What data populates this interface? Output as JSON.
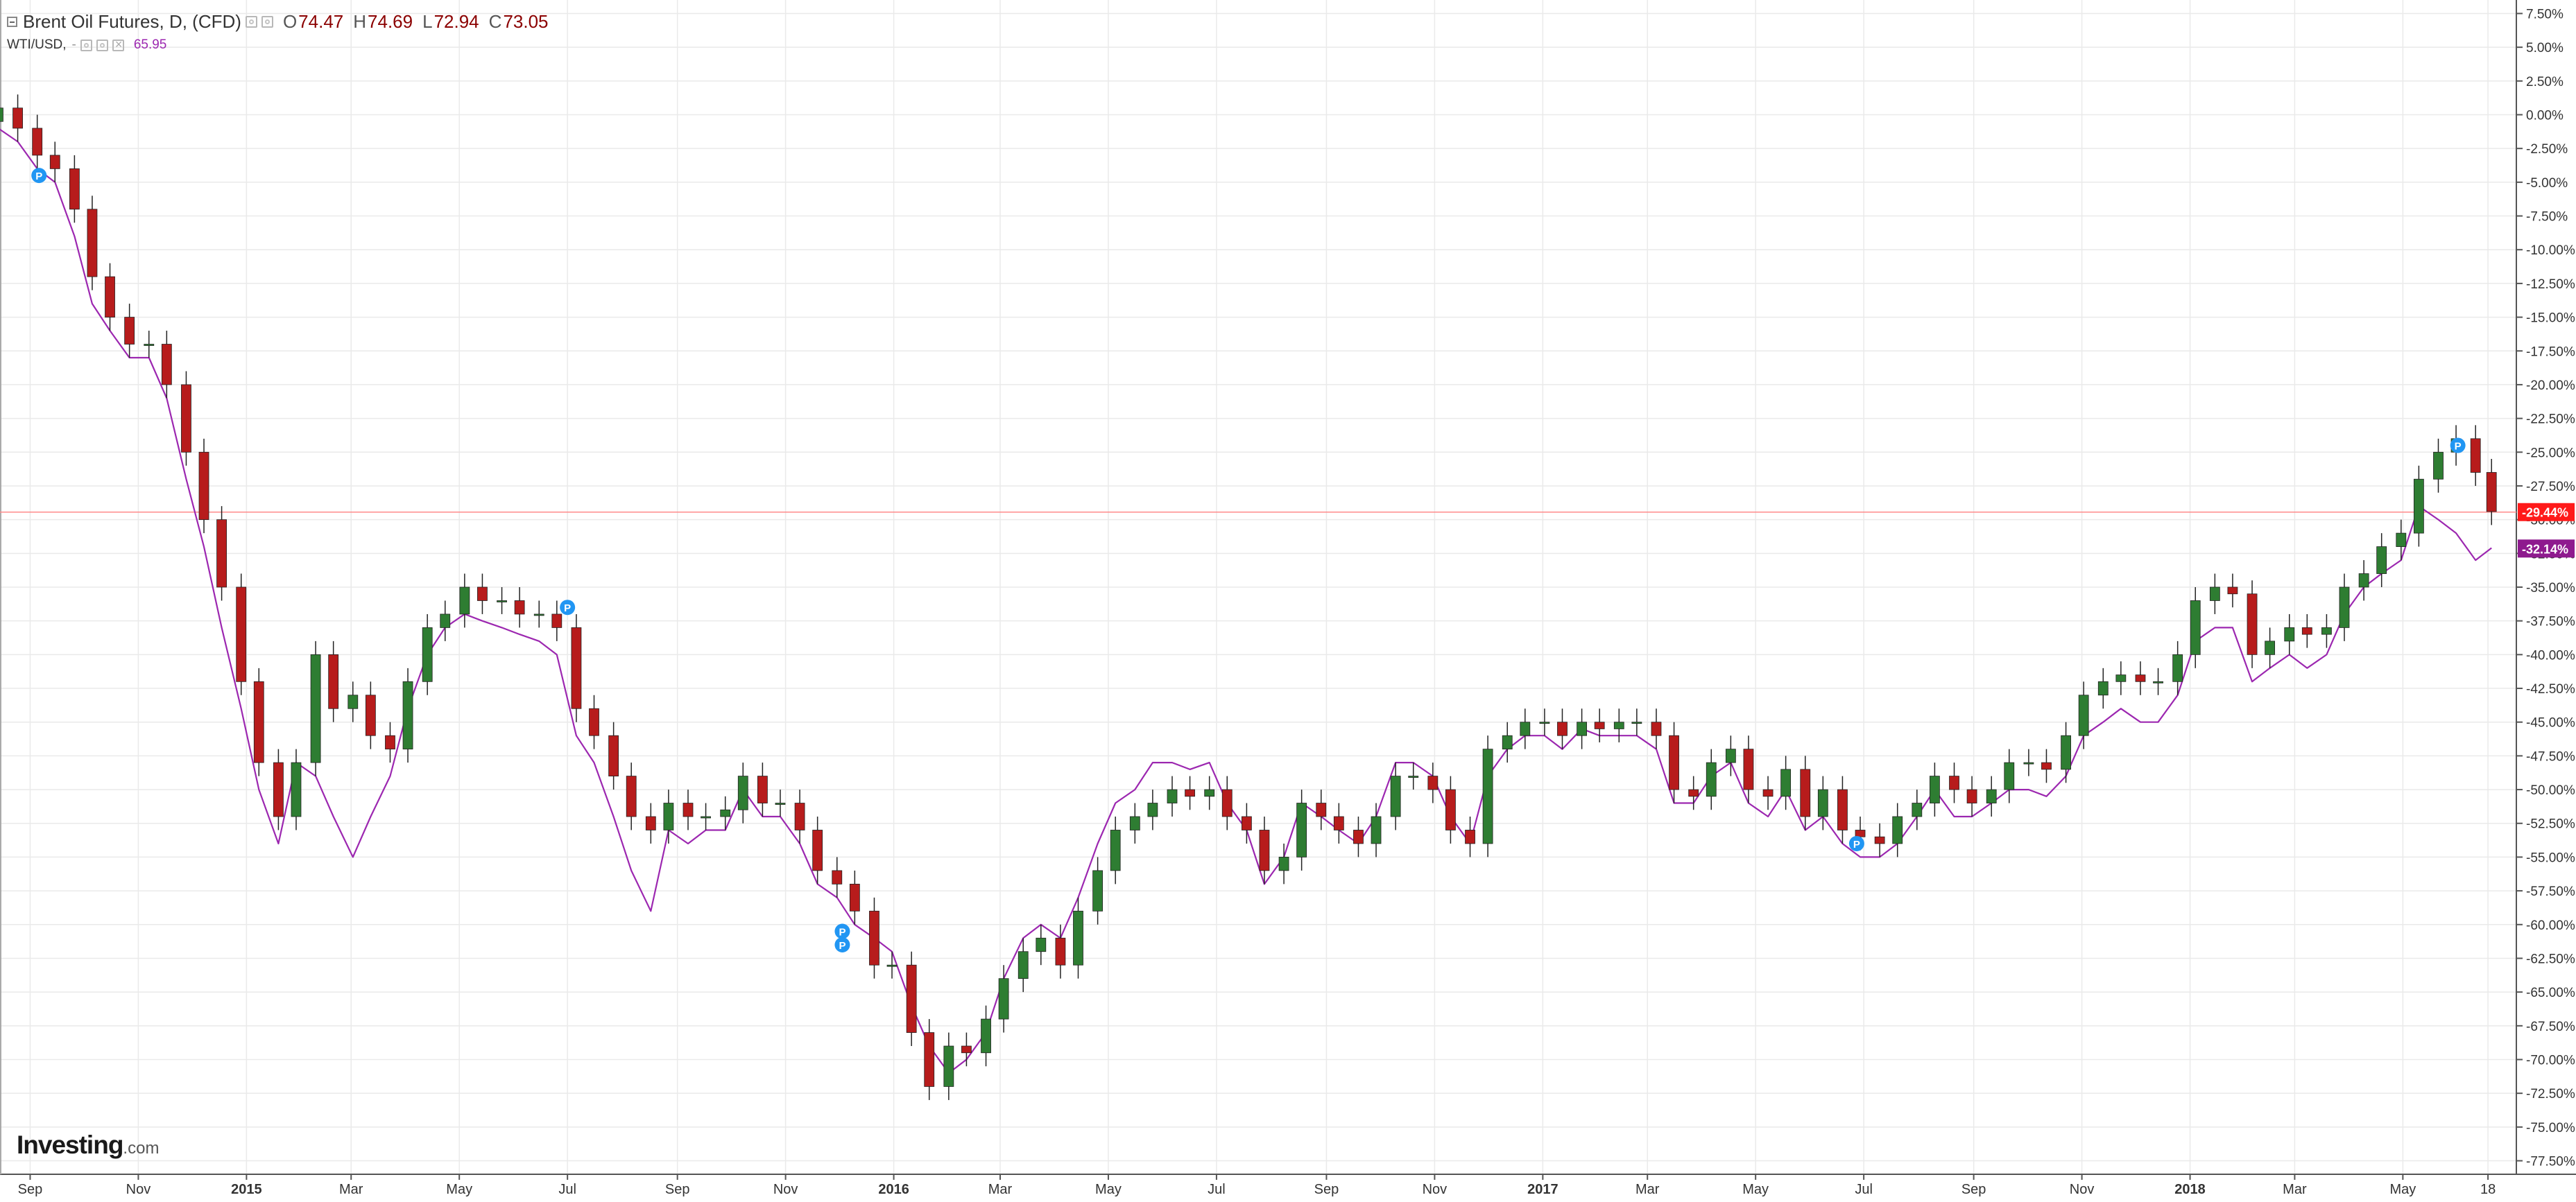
{
  "header": {
    "symbol": "Brent Oil Futures, D, (CFD)",
    "open_label": "O",
    "open": "74.47",
    "high_label": "H",
    "high": "74.69",
    "low_label": "L",
    "low": "72.94",
    "close_label": "C",
    "close": "73.05",
    "compare_symbol": "WTI/USD,",
    "compare_dash": "-",
    "compare_value": "65.95"
  },
  "logo": {
    "main": "Investing",
    "sub": ".com"
  },
  "colors": {
    "up": "#2e7d32",
    "down": "#b71c1c",
    "wti_line": "#9c27b0",
    "brent_badge": "#ff1a1a",
    "wti_badge": "#8e1a8e",
    "marker": "#2196f3",
    "grid": "#eaeaea",
    "axis_text": "#333333"
  },
  "icons": [
    "collapse-icon",
    "settings-icon",
    "visibility-icon",
    "close-icon",
    "p-marker-icon"
  ],
  "chart_data": {
    "type": "line",
    "x_type": "date",
    "x_tick_labels": [
      {
        "date": "2014-09-01",
        "label": "Sep"
      },
      {
        "date": "2014-11-01",
        "label": "Nov"
      },
      {
        "date": "2015-01-01",
        "label": "2015",
        "bold": true
      },
      {
        "date": "2015-03-01",
        "label": "Mar"
      },
      {
        "date": "2015-05-01",
        "label": "May"
      },
      {
        "date": "2015-07-01",
        "label": "Jul"
      },
      {
        "date": "2015-09-01",
        "label": "Sep"
      },
      {
        "date": "2015-11-01",
        "label": "Nov"
      },
      {
        "date": "2016-01-01",
        "label": "2016",
        "bold": true
      },
      {
        "date": "2016-03-01",
        "label": "Mar"
      },
      {
        "date": "2016-05-01",
        "label": "May"
      },
      {
        "date": "2016-07-01",
        "label": "Jul"
      },
      {
        "date": "2016-09-01",
        "label": "Sep"
      },
      {
        "date": "2016-11-01",
        "label": "Nov"
      },
      {
        "date": "2017-01-01",
        "label": "2017",
        "bold": true
      },
      {
        "date": "2017-03-01",
        "label": "Mar"
      },
      {
        "date": "2017-05-01",
        "label": "May"
      },
      {
        "date": "2017-07-01",
        "label": "Jul"
      },
      {
        "date": "2017-09-01",
        "label": "Sep"
      },
      {
        "date": "2017-11-01",
        "label": "Nov"
      },
      {
        "date": "2018-01-01",
        "label": "2018",
        "bold": true
      },
      {
        "date": "2018-03-01",
        "label": "Mar"
      },
      {
        "date": "2018-05-01",
        "label": "May"
      },
      {
        "date": "2018-06-18",
        "label": "18"
      }
    ],
    "y_ticks": [
      "7.50%",
      "5.00%",
      "2.50%",
      "0.00%",
      "-2.50%",
      "-5.00%",
      "-7.50%",
      "-10.00%",
      "-12.50%",
      "-15.00%",
      "-17.50%",
      "-20.00%",
      "-22.50%",
      "-25.00%",
      "-27.50%",
      "-30.00%",
      "-32.50%",
      "-35.00%",
      "-37.50%",
      "-40.00%",
      "-42.50%",
      "-45.00%",
      "-47.50%",
      "-50.00%",
      "-52.50%",
      "-55.00%",
      "-57.50%",
      "-60.00%",
      "-62.50%",
      "-65.00%",
      "-67.50%",
      "-70.00%",
      "-72.50%",
      "-75.00%",
      "-77.50%"
    ],
    "y_range_pct": [
      -78.5,
      8.5
    ],
    "x_range": [
      "2014-08-15",
      "2018-07-04"
    ],
    "grid": true,
    "series": [
      {
        "name": "Brent Oil Futures",
        "style": "candlestick",
        "last_pct": -29.44,
        "last_label": "-29.44%",
        "x": [
          "2014-08-14",
          "2014-08-25",
          "2014-09-05",
          "2014-09-15",
          "2014-09-26",
          "2014-10-06",
          "2014-10-16",
          "2014-10-27",
          "2014-11-07",
          "2014-11-17",
          "2014-11-28",
          "2014-12-08",
          "2014-12-18",
          "2014-12-29",
          "2015-01-08",
          "2015-01-19",
          "2015-01-29",
          "2015-02-09",
          "2015-02-19",
          "2015-03-02",
          "2015-03-12",
          "2015-03-23",
          "2015-04-02",
          "2015-04-13",
          "2015-04-23",
          "2015-05-04",
          "2015-05-14",
          "2015-05-25",
          "2015-06-04",
          "2015-06-15",
          "2015-06-25",
          "2015-07-06",
          "2015-07-16",
          "2015-07-27",
          "2015-08-06",
          "2015-08-17",
          "2015-08-27",
          "2015-09-07",
          "2015-09-17",
          "2015-09-28",
          "2015-10-08",
          "2015-10-19",
          "2015-10-29",
          "2015-11-09",
          "2015-11-19",
          "2015-11-30",
          "2015-12-10",
          "2015-12-21",
          "2015-12-31",
          "2016-01-11",
          "2016-01-21",
          "2016-02-01",
          "2016-02-11",
          "2016-02-22",
          "2016-03-03",
          "2016-03-14",
          "2016-03-24",
          "2016-04-04",
          "2016-04-14",
          "2016-04-25",
          "2016-05-05",
          "2016-05-16",
          "2016-05-26",
          "2016-06-06",
          "2016-06-16",
          "2016-06-27",
          "2016-07-07",
          "2016-07-18",
          "2016-07-28",
          "2016-08-08",
          "2016-08-18",
          "2016-08-29",
          "2016-09-08",
          "2016-09-19",
          "2016-09-29",
          "2016-10-10",
          "2016-10-20",
          "2016-10-31",
          "2016-11-10",
          "2016-11-21",
          "2016-12-01",
          "2016-12-12",
          "2016-12-22",
          "2017-01-02",
          "2017-01-12",
          "2017-01-23",
          "2017-02-02",
          "2017-02-13",
          "2017-02-23",
          "2017-03-06",
          "2017-03-16",
          "2017-03-27",
          "2017-04-06",
          "2017-04-17",
          "2017-04-27",
          "2017-05-08",
          "2017-05-18",
          "2017-05-29",
          "2017-06-08",
          "2017-06-19",
          "2017-06-29",
          "2017-07-10",
          "2017-07-20",
          "2017-07-31",
          "2017-08-10",
          "2017-08-21",
          "2017-08-31",
          "2017-09-11",
          "2017-09-21",
          "2017-10-02",
          "2017-10-12",
          "2017-10-23",
          "2017-11-02",
          "2017-11-13",
          "2017-11-23",
          "2017-12-04",
          "2017-12-14",
          "2017-12-25",
          "2018-01-04",
          "2018-01-15",
          "2018-01-25",
          "2018-02-05",
          "2018-02-15",
          "2018-02-26",
          "2018-03-08",
          "2018-03-19",
          "2018-03-29",
          "2018-04-09",
          "2018-04-19",
          "2018-04-30",
          "2018-05-10",
          "2018-05-21",
          "2018-05-31",
          "2018-06-11",
          "2018-06-20"
        ],
        "close_pct": [
          0.5,
          -1.0,
          -3.0,
          -4.0,
          -7.0,
          -12.0,
          -15.0,
          -17.0,
          -17.0,
          -20.0,
          -25.0,
          -30.0,
          -35.0,
          -42.0,
          -48.0,
          -52.0,
          -48.0,
          -40.0,
          -44.0,
          -43.0,
          -46.0,
          -47.0,
          -42.0,
          -38.0,
          -37.0,
          -35.0,
          -36.0,
          -36.0,
          -37.0,
          -37.0,
          -38.0,
          -44.0,
          -46.0,
          -49.0,
          -52.0,
          -53.0,
          -51.0,
          -52.0,
          -52.0,
          -51.5,
          -49.0,
          -51.0,
          -51.0,
          -53.0,
          -56.0,
          -57.0,
          -59.0,
          -63.0,
          -63.0,
          -68.0,
          -72.0,
          -69.0,
          -69.5,
          -67.0,
          -64.0,
          -62.0,
          -61.0,
          -63.0,
          -59.0,
          -56.0,
          -53.0,
          -52.0,
          -51.0,
          -50.0,
          -50.5,
          -50.0,
          -52.0,
          -53.0,
          -56.0,
          -55.0,
          -51.0,
          -52.0,
          -53.0,
          -54.0,
          -52.0,
          -49.0,
          -49.0,
          -50.0,
          -53.0,
          -54.0,
          -47.0,
          -46.0,
          -45.0,
          -45.0,
          -46.0,
          -45.0,
          -45.5,
          -45.0,
          -45.0,
          -46.0,
          -50.0,
          -50.5,
          -48.0,
          -47.0,
          -50.0,
          -50.5,
          -48.5,
          -52.0,
          -50.0,
          -53.0,
          -53.5,
          -54.0,
          -52.0,
          -51.0,
          -49.0,
          -50.0,
          -51.0,
          -50.0,
          -48.0,
          -48.0,
          -48.5,
          -46.0,
          -43.0,
          -42.0,
          -41.5,
          -42.0,
          -42.0,
          -40.0,
          -36.0,
          -35.0,
          -35.5,
          -40.0,
          -39.0,
          -38.0,
          -38.5,
          -38.0,
          -35.0,
          -34.0,
          -32.0,
          -31.0,
          -27.0,
          -25.0,
          -24.0,
          -26.5,
          -29.4
        ]
      },
      {
        "name": "WTI/USD",
        "style": "line",
        "last_pct": -32.14,
        "last_label": "-32.14%",
        "x": [
          "2014-08-14",
          "2014-08-25",
          "2014-09-05",
          "2014-09-15",
          "2014-09-26",
          "2014-10-06",
          "2014-10-16",
          "2014-10-27",
          "2014-11-07",
          "2014-11-17",
          "2014-11-28",
          "2014-12-08",
          "2014-12-18",
          "2014-12-29",
          "2015-01-08",
          "2015-01-19",
          "2015-01-29",
          "2015-02-09",
          "2015-02-19",
          "2015-03-02",
          "2015-03-12",
          "2015-03-23",
          "2015-04-02",
          "2015-04-13",
          "2015-04-23",
          "2015-05-04",
          "2015-05-14",
          "2015-05-25",
          "2015-06-04",
          "2015-06-15",
          "2015-06-25",
          "2015-07-06",
          "2015-07-16",
          "2015-07-27",
          "2015-08-06",
          "2015-08-17",
          "2015-08-27",
          "2015-09-07",
          "2015-09-17",
          "2015-09-28",
          "2015-10-08",
          "2015-10-19",
          "2015-10-29",
          "2015-11-09",
          "2015-11-19",
          "2015-11-30",
          "2015-12-10",
          "2015-12-21",
          "2015-12-31",
          "2016-01-11",
          "2016-01-21",
          "2016-02-01",
          "2016-02-11",
          "2016-02-22",
          "2016-03-03",
          "2016-03-14",
          "2016-03-24",
          "2016-04-04",
          "2016-04-14",
          "2016-04-25",
          "2016-05-05",
          "2016-05-16",
          "2016-05-26",
          "2016-06-06",
          "2016-06-16",
          "2016-06-27",
          "2016-07-07",
          "2016-07-18",
          "2016-07-28",
          "2016-08-08",
          "2016-08-18",
          "2016-08-29",
          "2016-09-08",
          "2016-09-19",
          "2016-09-29",
          "2016-10-10",
          "2016-10-20",
          "2016-10-31",
          "2016-11-10",
          "2016-11-21",
          "2016-12-01",
          "2016-12-12",
          "2016-12-22",
          "2017-01-02",
          "2017-01-12",
          "2017-01-23",
          "2017-02-02",
          "2017-02-13",
          "2017-02-23",
          "2017-03-06",
          "2017-03-16",
          "2017-03-27",
          "2017-04-06",
          "2017-04-17",
          "2017-04-27",
          "2017-05-08",
          "2017-05-18",
          "2017-05-29",
          "2017-06-08",
          "2017-06-19",
          "2017-06-29",
          "2017-07-10",
          "2017-07-20",
          "2017-07-31",
          "2017-08-10",
          "2017-08-21",
          "2017-08-31",
          "2017-09-11",
          "2017-09-21",
          "2017-10-02",
          "2017-10-12",
          "2017-10-23",
          "2017-11-02",
          "2017-11-13",
          "2017-11-23",
          "2017-12-04",
          "2017-12-14",
          "2017-12-25",
          "2018-01-04",
          "2018-01-15",
          "2018-01-25",
          "2018-02-05",
          "2018-02-15",
          "2018-02-26",
          "2018-03-08",
          "2018-03-19",
          "2018-03-29",
          "2018-04-09",
          "2018-04-19",
          "2018-04-30",
          "2018-05-10",
          "2018-05-21",
          "2018-05-31",
          "2018-06-11",
          "2018-06-20"
        ],
        "values_pct": [
          -1.0,
          -2.0,
          -4.0,
          -5.0,
          -9.0,
          -14.0,
          -16.0,
          -18.0,
          -18.0,
          -21.0,
          -27.0,
          -32.0,
          -38.0,
          -44.0,
          -50.0,
          -54.0,
          -48.0,
          -49.0,
          -52.0,
          -55.0,
          -52.0,
          -49.0,
          -44.0,
          -40.0,
          -38.0,
          -37.0,
          -37.5,
          -38.0,
          -38.5,
          -39.0,
          -40.0,
          -46.0,
          -48.0,
          -52.0,
          -56.0,
          -59.0,
          -53.0,
          -54.0,
          -53.0,
          -53.0,
          -50.0,
          -52.0,
          -52.0,
          -54.0,
          -57.0,
          -58.0,
          -60.0,
          -61.0,
          -62.0,
          -66.0,
          -69.0,
          -71.0,
          -70.0,
          -68.0,
          -64.0,
          -61.0,
          -60.0,
          -61.0,
          -58.0,
          -54.0,
          -51.0,
          -50.0,
          -48.0,
          -48.0,
          -48.5,
          -48.0,
          -51.0,
          -53.0,
          -57.0,
          -55.0,
          -51.0,
          -52.0,
          -53.0,
          -54.0,
          -52.0,
          -48.0,
          -48.0,
          -49.0,
          -52.0,
          -54.0,
          -49.0,
          -47.0,
          -46.0,
          -46.0,
          -47.0,
          -45.5,
          -46.0,
          -46.0,
          -46.0,
          -47.0,
          -51.0,
          -51.0,
          -49.0,
          -48.0,
          -51.0,
          -52.0,
          -50.0,
          -53.0,
          -52.0,
          -54.0,
          -55.0,
          -55.0,
          -54.0,
          -52.0,
          -50.0,
          -52.0,
          -52.0,
          -51.0,
          -50.0,
          -50.0,
          -50.5,
          -49.0,
          -46.0,
          -45.0,
          -44.0,
          -45.0,
          -45.0,
          -43.0,
          -39.0,
          -38.0,
          -38.0,
          -42.0,
          -41.0,
          -40.0,
          -41.0,
          -40.0,
          -37.0,
          -35.0,
          -34.0,
          -33.0,
          -29.0,
          -30.0,
          -31.0,
          -33.0,
          -32.1
        ]
      }
    ],
    "markers": [
      {
        "date": "2014-09-06",
        "pct": -4.5,
        "label": "P"
      },
      {
        "date": "2015-07-01",
        "pct": -36.5,
        "label": "P"
      },
      {
        "date": "2015-12-03",
        "pct": -60.5,
        "label": "P"
      },
      {
        "date": "2015-12-03",
        "pct": -61.5,
        "label": "P"
      },
      {
        "date": "2017-06-27",
        "pct": -54.0,
        "label": "P"
      },
      {
        "date": "2018-06-01",
        "pct": -24.5,
        "label": "P"
      }
    ]
  }
}
